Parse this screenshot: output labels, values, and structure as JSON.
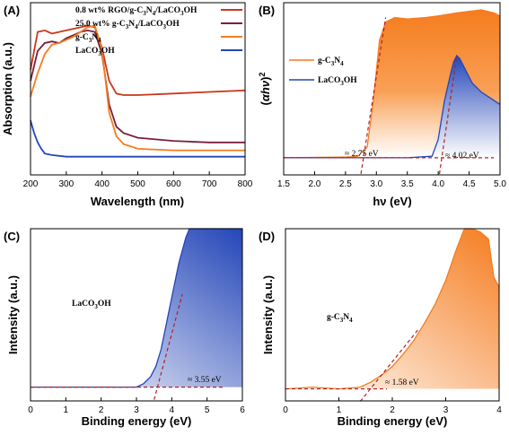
{
  "colors": {
    "orange": "#f57c1f",
    "blue": "#2446b8",
    "red": "#c8381e",
    "darkred": "#7a1e3a",
    "dashed": "#b32020"
  },
  "chart_data": [
    {
      "panel": "(A)",
      "type": "line",
      "xlabel": "Wavelength (nm)",
      "ylabel": "Absorption (a.u.)",
      "xlim": [
        200,
        800
      ],
      "xticks": [
        "200",
        "300",
        "400",
        "500",
        "600",
        "700",
        "800"
      ],
      "legend_position": "top-right",
      "series": [
        {
          "name": "0.8 wt% RGO/g-C3N4/LaCO3OH",
          "legend": [
            "0.8 wt% RGO/g-C",
            "3",
            "N",
            "4",
            "/LaCO",
            "3",
            "OH"
          ],
          "color": "#c8381e",
          "x": [
            200,
            220,
            240,
            260,
            280,
            300,
            320,
            340,
            360,
            380,
            400,
            420,
            440,
            460,
            500,
            600,
            700,
            800
          ],
          "y": [
            0.62,
            0.86,
            0.87,
            0.85,
            0.86,
            0.87,
            0.88,
            0.89,
            0.9,
            0.89,
            0.76,
            0.55,
            0.47,
            0.46,
            0.46,
            0.47,
            0.48,
            0.49
          ]
        },
        {
          "name": "25.0 wt% g-C3N4/LaCO3OH",
          "legend": [
            "25.0 wt% g-C",
            "3",
            "N",
            "4",
            "/LaCO",
            "3",
            "OH"
          ],
          "color": "#7a1e3a",
          "x": [
            200,
            220,
            240,
            260,
            280,
            300,
            320,
            340,
            360,
            380,
            400,
            420,
            440,
            460,
            500,
            600,
            700,
            800
          ],
          "y": [
            0.55,
            0.74,
            0.79,
            0.8,
            0.79,
            0.82,
            0.84,
            0.86,
            0.87,
            0.86,
            0.72,
            0.4,
            0.26,
            0.22,
            0.19,
            0.17,
            0.16,
            0.16
          ]
        },
        {
          "name": "g-C3N4",
          "legend": [
            "g-C",
            "3",
            "N",
            "4"
          ],
          "color": "#f57c1f",
          "x": [
            200,
            220,
            240,
            260,
            280,
            300,
            320,
            340,
            360,
            380,
            400,
            420,
            440,
            460,
            500,
            600,
            700,
            800
          ],
          "y": [
            0.45,
            0.6,
            0.72,
            0.78,
            0.79,
            0.81,
            0.83,
            0.86,
            0.89,
            0.9,
            0.75,
            0.35,
            0.2,
            0.15,
            0.12,
            0.11,
            0.11,
            0.11
          ]
        },
        {
          "name": "LaCO3OH",
          "legend": [
            "LaCO",
            "3",
            "OH"
          ],
          "color": "#2446b8",
          "x": [
            200,
            210,
            220,
            230,
            240,
            260,
            300,
            400,
            500,
            600,
            700,
            800
          ],
          "y": [
            0.3,
            0.22,
            0.16,
            0.12,
            0.09,
            0.08,
            0.07,
            0.07,
            0.07,
            0.07,
            0.07,
            0.07
          ]
        }
      ]
    },
    {
      "panel": "(B)",
      "type": "area",
      "xlabel": "hν (eV)",
      "ylabel": "(αhν)²",
      "ylabel_parts": [
        "(",
        "αhν",
        ")",
        "2"
      ],
      "xlim": [
        1.5,
        5.0
      ],
      "xticks": [
        "1.5",
        "2.0",
        "2.5",
        "3.0",
        "3.5",
        "4.0",
        "4.5",
        "5.0"
      ],
      "legend_position": "top-left",
      "series": [
        {
          "name": "g-C3N4",
          "legend": [
            "g-C",
            "3",
            "N",
            "4"
          ],
          "color": "#f57c1f",
          "x": [
            1.5,
            2.5,
            2.7,
            2.85,
            2.95,
            3.05,
            3.15,
            3.3,
            3.5,
            3.8,
            4.0,
            4.3,
            4.5,
            4.7,
            4.9,
            5.0
          ],
          "y": [
            0.03,
            0.035,
            0.04,
            0.1,
            0.4,
            0.8,
            0.92,
            0.95,
            0.94,
            0.95,
            0.96,
            0.98,
            0.99,
            1.0,
            0.98,
            0.96
          ]
        },
        {
          "name": "LaCO3OH",
          "legend": [
            "LaCO",
            "3",
            "OH"
          ],
          "color": "#2446b8",
          "x": [
            1.5,
            3.5,
            3.9,
            4.0,
            4.1,
            4.2,
            4.25,
            4.3,
            4.35,
            4.45,
            4.55,
            4.7,
            4.85,
            5.0
          ],
          "y": [
            0.03,
            0.03,
            0.04,
            0.15,
            0.4,
            0.58,
            0.66,
            0.7,
            0.68,
            0.6,
            0.52,
            0.46,
            0.42,
            0.38
          ]
        }
      ],
      "annotations": [
        "≈ 2.75 eV",
        "≈ 4.02 eV"
      ],
      "annotation_values": [
        2.75,
        4.02
      ]
    },
    {
      "panel": "(C)",
      "type": "area",
      "xlabel": "Binding energy (eV)",
      "ylabel": "Intensity (a.u.)",
      "xlim": [
        0,
        6
      ],
      "xticks": [
        "0",
        "1",
        "2",
        "3",
        "4",
        "5",
        "6"
      ],
      "label": [
        "LaCO",
        "3",
        "OH"
      ],
      "color": "#2446b8",
      "x": [
        0,
        1,
        2,
        3,
        3.2,
        3.4,
        3.55,
        3.7,
        3.85,
        4.0,
        4.2,
        4.4,
        4.5,
        5.0,
        6.0
      ],
      "y": [
        0.08,
        0.08,
        0.08,
        0.08,
        0.1,
        0.14,
        0.2,
        0.3,
        0.45,
        0.6,
        0.8,
        0.95,
        1.0,
        1.0,
        1.0
      ],
      "annotation": "≈ 3.55 eV",
      "annotation_value": 3.55
    },
    {
      "panel": "(D)",
      "type": "area",
      "xlabel": "Binding energy (eV)",
      "ylabel": "Intensity (a.u.)",
      "xlim": [
        0,
        4
      ],
      "xticks": [
        "0",
        "1",
        "2",
        "3",
        "4"
      ],
      "label": [
        "g-C",
        "3",
        "N",
        "4"
      ],
      "color": "#f57c1f",
      "x": [
        0,
        0.5,
        1.0,
        1.4,
        1.6,
        1.8,
        2.0,
        2.2,
        2.4,
        2.6,
        2.8,
        3.0,
        3.2,
        3.35,
        3.5,
        3.65,
        3.8,
        3.9,
        4.0
      ],
      "y": [
        0.07,
        0.08,
        0.07,
        0.08,
        0.11,
        0.15,
        0.2,
        0.27,
        0.35,
        0.45,
        0.56,
        0.7,
        0.88,
        1.0,
        1.0,
        0.98,
        0.94,
        0.72,
        0.66
      ],
      "annotation": "≈ 1.58 eV",
      "annotation_value": 1.58
    }
  ]
}
